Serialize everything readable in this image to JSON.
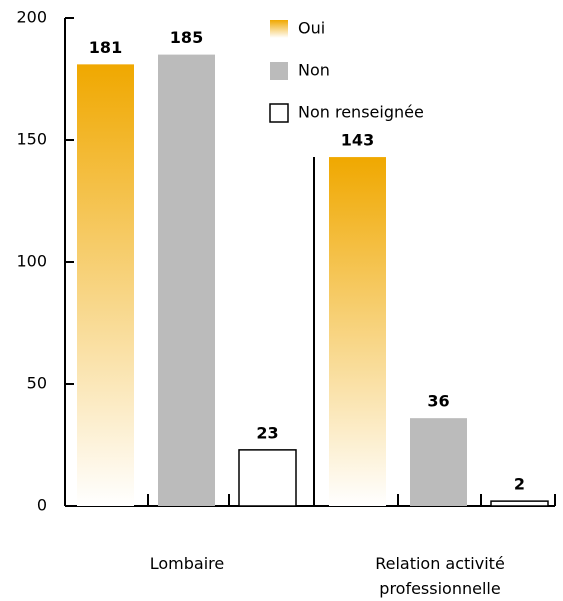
{
  "chart_data": {
    "type": "bar",
    "categories": [
      "Lombaire",
      "Relation activité professionnelle"
    ],
    "series": [
      {
        "name": "Oui",
        "color": "#f0a800",
        "values": [
          181,
          143
        ]
      },
      {
        "name": "Non",
        "color": "#bbbbbb",
        "values": [
          185,
          36
        ]
      },
      {
        "name": "Non renseignée",
        "color": "#ffffff",
        "values": [
          23,
          2
        ]
      }
    ],
    "ylim": [
      0,
      200
    ],
    "yticks": [
      0,
      50,
      100,
      150,
      200
    ]
  }
}
